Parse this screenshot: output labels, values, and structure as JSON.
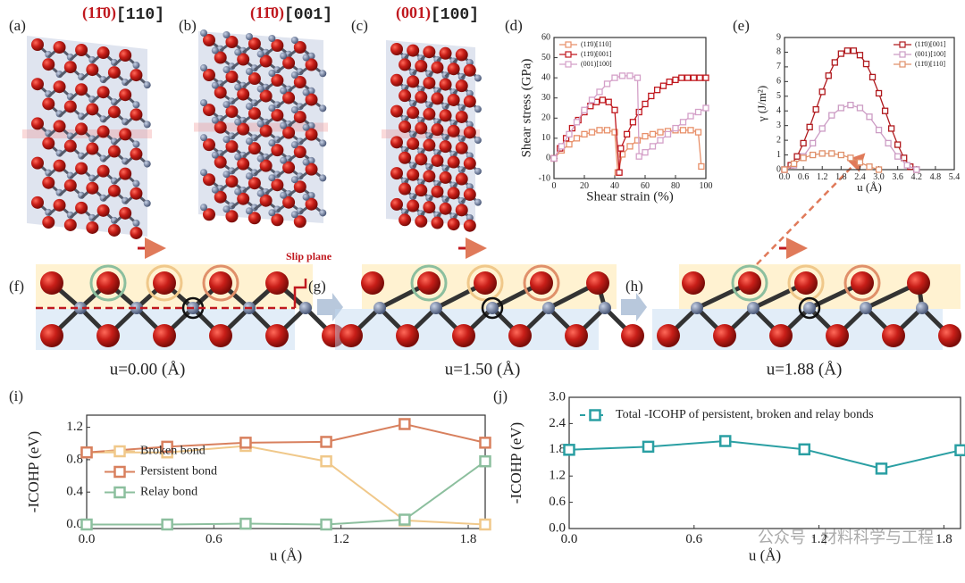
{
  "structures": [
    {
      "label": "(a)",
      "plane": "(11̄0)",
      "direction": "[110]"
    },
    {
      "label": "(b)",
      "plane": "(11̄0)",
      "direction": "[001]"
    },
    {
      "label": "(c)",
      "plane": "(001)",
      "direction": "[100]"
    }
  ],
  "slips": [
    {
      "label": "(f)",
      "caption": "u=0.00 (Å)"
    },
    {
      "label": "(g)",
      "caption": "u=1.50 (Å)"
    },
    {
      "label": "(h)",
      "caption": "u=1.88 (Å)"
    }
  ],
  "slip_plane": "Slip plane",
  "watermark": "公众号 · 材料科学与工程",
  "chart_data": [
    {
      "type": "line",
      "panel_label": "(d)",
      "xlabel": "Shear strain (%)",
      "ylabel": "Shear stress (GPa)",
      "xlim": [
        0,
        100
      ],
      "xticks": [
        0,
        20,
        40,
        60,
        80,
        100
      ],
      "ylim": [
        -10,
        60
      ],
      "yticks": [
        -10,
        0,
        10,
        20,
        30,
        40,
        50,
        60
      ],
      "legend": "upper left",
      "marker": "square",
      "series": [
        {
          "name": "(11̄0)[110]",
          "color": "#e8906a",
          "x": [
            0,
            5,
            10,
            15,
            20,
            25,
            30,
            35,
            40,
            42,
            45,
            50,
            55,
            60,
            65,
            70,
            75,
            80,
            85,
            90,
            95,
            97
          ],
          "values": [
            0,
            4,
            7,
            10,
            12,
            13,
            14,
            14,
            13,
            -7,
            2,
            6,
            9,
            11,
            12,
            13,
            13.5,
            14,
            14,
            14,
            13,
            -4
          ]
        },
        {
          "name": "(11̄0)[001]",
          "color": "#c0181e",
          "x": [
            0,
            4,
            8,
            12,
            16,
            20,
            24,
            28,
            32,
            36,
            40,
            43,
            44,
            48,
            52,
            56,
            60,
            64,
            68,
            72,
            76,
            80,
            84,
            88,
            92,
            96,
            100
          ],
          "values": [
            0,
            5,
            10,
            15,
            19,
            23,
            26,
            28,
            29,
            28,
            24,
            -7,
            5,
            12,
            18,
            23,
            27,
            31,
            34,
            36,
            38,
            39,
            40,
            40,
            40,
            40,
            40
          ]
        },
        {
          "name": "(001)[100]",
          "color": "#d4a0c8",
          "x": [
            0,
            5,
            10,
            15,
            20,
            25,
            30,
            35,
            40,
            45,
            50,
            55,
            56,
            60,
            65,
            70,
            75,
            80,
            85,
            90,
            95,
            100
          ],
          "values": [
            0,
            6,
            12,
            18,
            24,
            29,
            33,
            37,
            40,
            41,
            41,
            40,
            1,
            3,
            6,
            9,
            12,
            15,
            18,
            21,
            23,
            25
          ]
        }
      ]
    },
    {
      "type": "line",
      "panel_label": "(e)",
      "xlabel": "u (Å)",
      "ylabel": "γ (J/m²)",
      "xlim": [
        0,
        5.4
      ],
      "xticks": [
        {
          "value": 0,
          "label": "0.0"
        },
        0.6,
        1.2,
        1.8,
        2.4,
        {
          "value": 3,
          "label": "3.0"
        },
        3.6,
        4.2,
        4.8,
        5.4
      ],
      "ylim": [
        0,
        9
      ],
      "yticks": [
        0,
        1,
        2,
        3,
        4,
        5,
        6,
        7,
        8,
        9
      ],
      "legend": "upper right",
      "marker": "square",
      "series": [
        {
          "name": "(11̄0)[001]",
          "color": "#b01a1e",
          "x": [
            0,
            0.2,
            0.4,
            0.6,
            0.8,
            1.0,
            1.2,
            1.4,
            1.6,
            1.8,
            2.0,
            2.2,
            2.4,
            2.6,
            2.8,
            3.0,
            3.2,
            3.4,
            3.6,
            3.8,
            4.0,
            4.2
          ],
          "values": [
            0,
            0.3,
            0.9,
            1.8,
            2.9,
            4.1,
            5.3,
            6.4,
            7.3,
            7.9,
            8.1,
            8.1,
            7.8,
            7.2,
            6.3,
            5.2,
            4.0,
            2.8,
            1.7,
            0.8,
            0.2,
            0
          ]
        },
        {
          "name": "(001)[100]",
          "color": "#cc9cc4",
          "x": [
            0,
            0.3,
            0.6,
            0.9,
            1.2,
            1.5,
            1.8,
            2.1,
            2.4,
            2.7,
            3.0,
            3.3,
            3.6,
            3.9,
            4.2
          ],
          "values": [
            0,
            0.3,
            0.9,
            1.8,
            2.8,
            3.7,
            4.2,
            4.4,
            4.2,
            3.6,
            2.7,
            1.8,
            0.9,
            0.3,
            0
          ]
        },
        {
          "name": "(11̄0)[110]",
          "color": "#e0906a",
          "x": [
            0,
            0.3,
            0.6,
            0.9,
            1.2,
            1.5,
            1.8,
            2.1,
            2.4,
            2.7,
            3.0
          ],
          "values": [
            0,
            0.4,
            0.8,
            1.0,
            1.1,
            1.1,
            1.0,
            0.8,
            0.5,
            0.2,
            0
          ]
        }
      ]
    },
    {
      "type": "line",
      "panel_label": "(i)",
      "xlabel": "u (Å)",
      "ylabel": "-ICOHP (eV)",
      "xlim": [
        0,
        1.88
      ],
      "xticks": [
        {
          "value": 0,
          "label": "0.0"
        },
        0.6,
        1.2,
        1.8
      ],
      "ylim": [
        -0.05,
        1.35
      ],
      "yticks": [
        {
          "value": 0,
          "label": "0.0"
        },
        0.4,
        0.8,
        1.2
      ],
      "legend": "center left",
      "marker": "square",
      "series": [
        {
          "name": "Broken bond",
          "color": "#f0c88a",
          "x": [
            0,
            0.38,
            0.75,
            1.13,
            1.5,
            1.88
          ],
          "values": [
            0.89,
            0.89,
            0.97,
            0.78,
            0.05,
            0.0
          ]
        },
        {
          "name": "Persistent bond",
          "color": "#d8805e",
          "x": [
            0,
            0.38,
            0.75,
            1.13,
            1.5,
            1.88
          ],
          "values": [
            0.89,
            0.96,
            1.01,
            1.02,
            1.24,
            1.01
          ]
        },
        {
          "name": "Relay bond",
          "color": "#8cbf9e",
          "x": [
            0,
            0.38,
            0.75,
            1.13,
            1.5,
            1.88
          ],
          "values": [
            0,
            0,
            0.01,
            0,
            0.06,
            0.78
          ]
        }
      ]
    },
    {
      "type": "line",
      "panel_label": "(j)",
      "xlabel": "u (Å)",
      "ylabel": "-ICOHP (eV)",
      "xlim": [
        0,
        1.88
      ],
      "xticks": [
        {
          "value": 0,
          "label": "0.0"
        },
        0.6,
        1.2,
        1.8
      ],
      "ylim": [
        0,
        3
      ],
      "yticks": [
        {
          "value": 0,
          "label": "0.0"
        },
        0.6,
        1.2,
        1.8,
        2.4,
        {
          "value": 3,
          "label": "3.0"
        }
      ],
      "legend": "upper center",
      "marker": "square",
      "series": [
        {
          "name": "Total -ICOHP of persistent, broken and relay bonds",
          "color": "#2a9fa3",
          "x": [
            0,
            0.38,
            0.75,
            1.13,
            1.5,
            1.88
          ],
          "values": [
            1.8,
            1.87,
            2.0,
            1.81,
            1.37,
            1.79
          ]
        }
      ]
    }
  ]
}
